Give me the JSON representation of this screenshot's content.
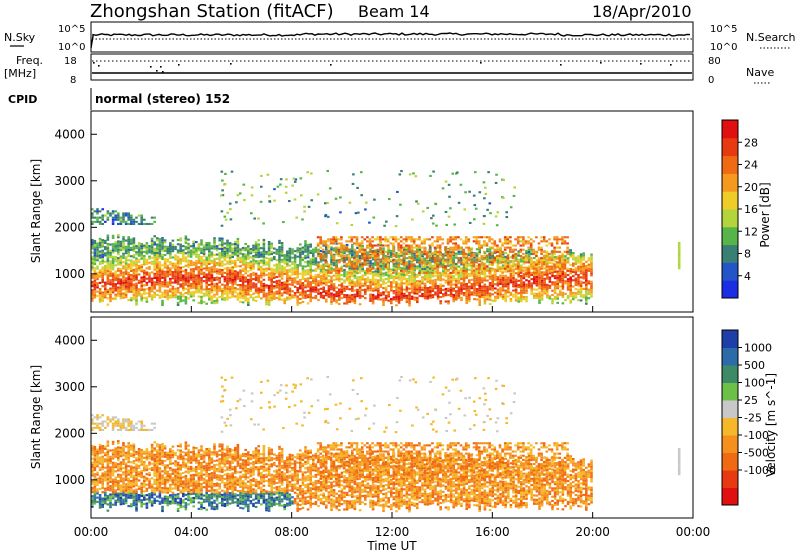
{
  "header": {
    "title": "Zhongshan Station (fitACF)",
    "beam": "Beam 14",
    "date": "18/Apr/2010"
  },
  "top_panels": {
    "nsky_label": "N.Sky",
    "nsearch_label": "N.Search",
    "freq_label": "Freq.",
    "freq_unit": "[MHz]",
    "nave_label": "Nave",
    "cpid_label": "CPID",
    "cpid_text": "normal (stereo) 152",
    "nsky_ticks": [
      "10^5",
      "10^0"
    ],
    "nsearch_ticks": [
      "10^5",
      "10^0"
    ],
    "freq_ticks": [
      "18",
      "8"
    ],
    "nave_ticks": [
      "80",
      "0"
    ]
  },
  "axes": {
    "xlabel": "Time UT",
    "ylabel": "Slant Range [km]",
    "x_ticks": [
      "00:00",
      "04:00",
      "08:00",
      "12:00",
      "16:00",
      "20:00",
      "00:00"
    ],
    "y_ticks": [
      "1000",
      "2000",
      "3000",
      "4000"
    ]
  },
  "colorbars": {
    "power": {
      "label": "Power [dB]",
      "ticks": [
        "4",
        "8",
        "12",
        "16",
        "20",
        "24",
        "28"
      ],
      "colors": [
        "#1a2ee6",
        "#2255c8",
        "#3a7f73",
        "#57b448",
        "#b4d43c",
        "#f0cc28",
        "#f59a1e",
        "#f06a14",
        "#e83a10",
        "#e01010"
      ]
    },
    "velocity": {
      "label": "Velocity [m s^-1]",
      "ticks": [
        "1000",
        "500",
        "100",
        "25",
        "-25",
        "-100",
        "-500",
        "-1000"
      ],
      "colors": [
        "#1f3fa8",
        "#2d6aa8",
        "#3d8a66",
        "#6cc048",
        "#c8c8c8",
        "#f5b828",
        "#f5901e",
        "#f06a14",
        "#e83a10",
        "#e01010"
      ]
    }
  },
  "chart_data": [
    {
      "type": "heatmap",
      "title": "Power",
      "xlabel": "Time UT",
      "ylabel": "Slant Range [km]",
      "xlim": [
        "00:00",
        "24:00"
      ],
      "ylim": [
        180,
        4500
      ],
      "colorbar": "Power [dB]",
      "clim": [
        0,
        32
      ],
      "echo_bands": [
        {
          "start": "00:00",
          "end": "02:30",
          "range_km": [
            2050,
            2400
          ],
          "value_db": 8
        },
        {
          "start": "00:00",
          "end": "20:00",
          "range_km": [
            300,
            1700
          ],
          "value_db": 20
        },
        {
          "start": "09:00",
          "end": "19:00",
          "range_km": [
            1000,
            1800
          ],
          "value_db": 22
        }
      ]
    },
    {
      "type": "heatmap",
      "title": "Velocity",
      "xlabel": "Time UT",
      "ylabel": "Slant Range [km]",
      "xlim": [
        "00:00",
        "24:00"
      ],
      "ylim": [
        180,
        4500
      ],
      "colorbar": "Velocity [m s^-1]",
      "clim": [
        -1000,
        1000
      ],
      "echo_bands": [
        {
          "start": "00:00",
          "end": "02:30",
          "range_km": [
            2050,
            2400
          ],
          "value_ms": 0
        },
        {
          "start": "00:00",
          "end": "20:00",
          "range_km": [
            300,
            1700
          ],
          "value_ms": -300
        },
        {
          "start": "09:00",
          "end": "19:00",
          "range_km": [
            1000,
            1800
          ],
          "value_ms": -300
        }
      ]
    }
  ]
}
